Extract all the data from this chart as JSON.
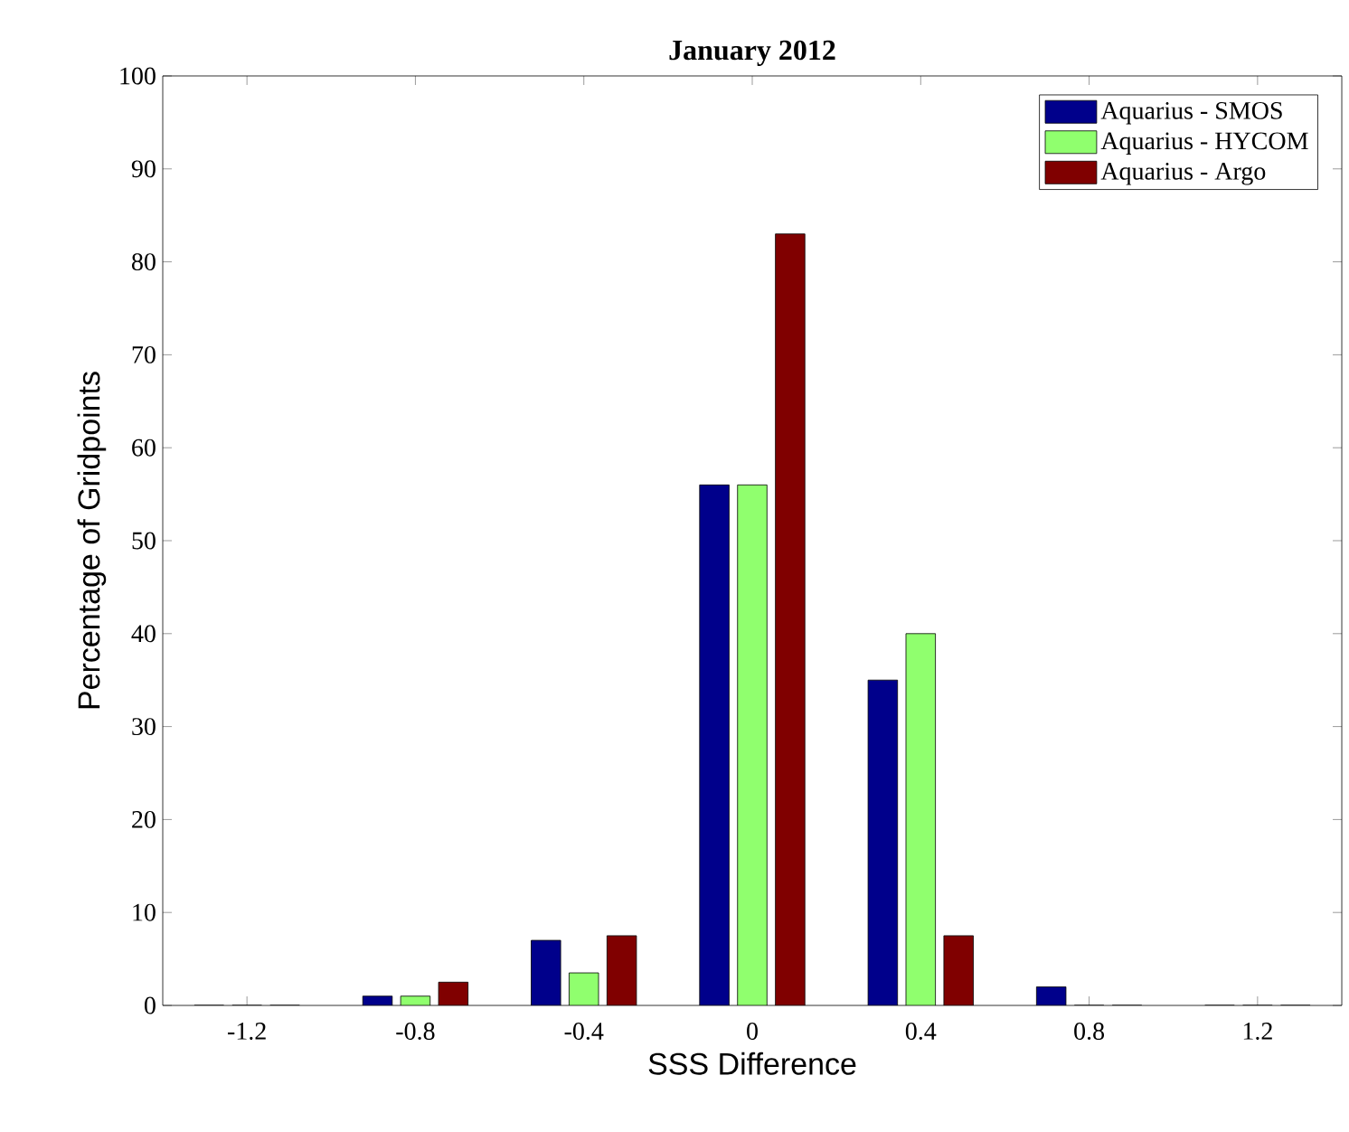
{
  "chart_data": {
    "type": "bar",
    "title": "January 2012",
    "xlabel": "SSS Difference",
    "ylabel": "Percentage of Gridpoints",
    "x": [
      -1.2,
      -0.8,
      -0.4,
      0,
      0.4,
      0.8,
      1.2
    ],
    "series": [
      {
        "name": "Aquarius - SMOS",
        "color": "#00008b",
        "values": [
          0,
          1,
          7,
          56,
          35,
          2,
          0
        ]
      },
      {
        "name": "Aquarius - HYCOM",
        "color": "#90ff6e",
        "values": [
          0,
          1,
          3.5,
          56,
          40,
          0,
          0
        ]
      },
      {
        "name": "Aquarius - Argo",
        "color": "#800000",
        "values": [
          0,
          2.5,
          7.5,
          83,
          7.5,
          0,
          0
        ]
      }
    ],
    "xlim": [
      -1.4,
      1.4
    ],
    "xticks": [
      -1.2,
      -0.8,
      -0.4,
      0,
      0.4,
      0.8,
      1.2
    ],
    "ylim": [
      0,
      100
    ],
    "yticks": [
      0,
      10,
      20,
      30,
      40,
      50,
      60,
      70,
      80,
      90,
      100
    ],
    "grid": false,
    "legend": "top right"
  }
}
